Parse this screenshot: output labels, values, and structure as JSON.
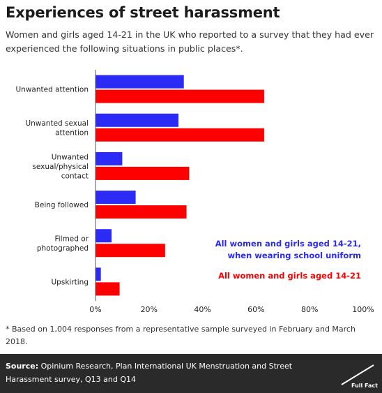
{
  "header": {
    "title": "Experiences of street harassment",
    "subtitle": "Women and girls aged 14-21 in the UK who reported to a survey that they had ever experienced the following situations in public places*."
  },
  "footnote": "* Based on 1,004 responses from a representative sample surveyed in February and March 2018.",
  "footer": {
    "source_label": "Source:",
    "source_text": "Opinium Research, Plan International UK Menstruation and Street Harassment survey, Q13 and Q14",
    "logo_text": "Full Fact"
  },
  "colors": {
    "school_uniform": "#2b2bf5",
    "all": "#ff0000",
    "footer_bg": "#2a2a2a"
  },
  "chart_data": {
    "type": "bar",
    "orientation": "horizontal",
    "categories": [
      [
        "Unwanted attention"
      ],
      [
        "Unwanted sexual",
        "attention"
      ],
      [
        "Unwanted",
        "sexual/physical",
        "contact"
      ],
      [
        "Being followed"
      ],
      [
        "Filmed or",
        "photographed"
      ],
      [
        "Upskirting"
      ]
    ],
    "series": [
      {
        "name": "All women and girls aged 14-21, when wearing school uniform",
        "legend_lines": [
          "All women and girls aged 14-21,",
          "when wearing school uniform"
        ],
        "color": "#2b2bf5",
        "values": [
          33,
          31,
          10,
          15,
          6,
          2
        ]
      },
      {
        "name": "All women and girls aged 14-21",
        "legend_lines": [
          "All women and girls aged 14-21"
        ],
        "color": "#ff0000",
        "values": [
          63,
          63,
          35,
          34,
          26,
          9
        ]
      }
    ],
    "xlim": [
      0,
      100
    ],
    "xticks": [
      "0%",
      "20%",
      "40%",
      "60%",
      "80%",
      "100%"
    ],
    "grid": false,
    "legend_position": "right"
  }
}
